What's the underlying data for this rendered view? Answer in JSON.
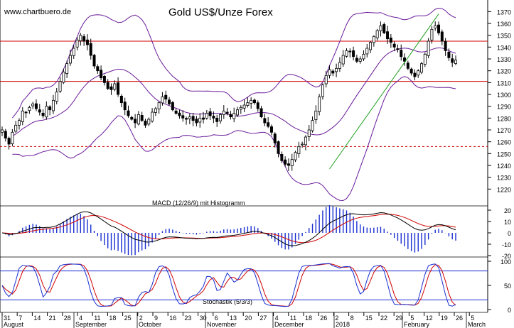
{
  "source_label": "www.chartbuero.de",
  "title": "Gold US$/Unze Forex",
  "colors": {
    "candle": "#000000",
    "bollinger": "#6a1b9a",
    "resistance": "#d00000",
    "trendline": "#1f9e1f",
    "macd_line": "#000000",
    "signal_line": "#d00000",
    "histogram": "#1a2fd0",
    "stoch_k": "#1a2fd0",
    "stoch_d": "#d00000",
    "stoch_levels": "#1a2fd0"
  },
  "chart_data": [
    {
      "type": "candlestick",
      "title": "Gold US$/Unze Forex",
      "ylim": [
        1210,
        1375
      ],
      "yticks": [
        1220,
        1230,
        1240,
        1250,
        1260,
        1270,
        1280,
        1290,
        1300,
        1310,
        1320,
        1330,
        1340,
        1350,
        1360,
        1370
      ],
      "x_day_labels": [
        "31",
        "7",
        "14",
        "21",
        "28",
        "4",
        "11",
        "18",
        "25",
        "2",
        "9",
        "16",
        "23",
        "30",
        "6",
        "13",
        "20",
        "27",
        "4",
        "11",
        "18",
        "26",
        "2",
        "8",
        "15",
        "22",
        "29",
        "5",
        "12",
        "19",
        "26",
        "5"
      ],
      "x_month_labels": [
        "August",
        "September",
        "October",
        "November",
        "December",
        "2018",
        "February",
        "March"
      ],
      "horizontal_lines": [
        {
          "value": 1345,
          "style": "solid"
        },
        {
          "value": 1311,
          "style": "solid"
        },
        {
          "value": 1256,
          "style": "dashed"
        }
      ],
      "trendline": {
        "from": {
          "date": "2017-12-12",
          "value": 1237
        },
        "to": {
          "date": "2018-01-25",
          "value": 1368
        }
      },
      "closes": [
        1270,
        1263,
        1258,
        1268,
        1274,
        1278,
        1286,
        1285,
        1289,
        1292,
        1288,
        1285,
        1282,
        1290,
        1287,
        1295,
        1302,
        1311,
        1319,
        1326,
        1333,
        1339,
        1346,
        1350,
        1345,
        1342,
        1333,
        1324,
        1320,
        1314,
        1310,
        1305,
        1304,
        1309,
        1300,
        1293,
        1287,
        1282,
        1279,
        1276,
        1283,
        1278,
        1274,
        1279,
        1285,
        1288,
        1293,
        1298,
        1296,
        1292,
        1287,
        1284,
        1282,
        1280,
        1279,
        1281,
        1278,
        1276,
        1280,
        1279,
        1284,
        1282,
        1280,
        1277,
        1283,
        1286,
        1284,
        1281,
        1284,
        1287,
        1289,
        1291,
        1293,
        1295,
        1293,
        1288,
        1281,
        1276,
        1273,
        1268,
        1259,
        1250,
        1244,
        1241,
        1240,
        1245,
        1251,
        1256,
        1258,
        1264,
        1270,
        1278,
        1286,
        1298,
        1308,
        1316,
        1321,
        1318,
        1322,
        1327,
        1333,
        1337,
        1336,
        1332,
        1328,
        1330,
        1334,
        1339,
        1344,
        1349,
        1354,
        1358,
        1352,
        1347,
        1344,
        1340,
        1338,
        1332,
        1328,
        1322,
        1318,
        1315,
        1320,
        1326,
        1334,
        1345,
        1355,
        1358,
        1352,
        1345,
        1337,
        1331,
        1327,
        1329
      ]
    },
    {
      "type": "line",
      "title": "MACD (12/26/9) mit Histogramm",
      "ylim": [
        -20,
        20
      ],
      "yticks": [
        20,
        10,
        0,
        -10,
        -20
      ],
      "series": []
    },
    {
      "type": "line",
      "title": "Stochastik (5/3/3)",
      "ylim": [
        0,
        100
      ],
      "yticks": [
        100,
        50,
        0
      ],
      "levels": [
        80,
        20
      ],
      "series": []
    }
  ]
}
